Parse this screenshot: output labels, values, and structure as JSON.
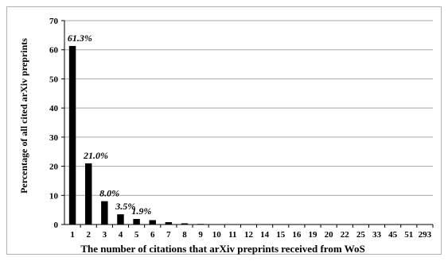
{
  "chart_data": {
    "type": "bar",
    "title": "",
    "xlabel": "The number of citations that arXiv preprints received from WoS",
    "ylabel": "Percentage of all cited arXiv preprints",
    "ylim": [
      0,
      70
    ],
    "yticks": [
      "0",
      "10",
      "20",
      "30",
      "40",
      "50",
      "60",
      "70"
    ],
    "grid": true,
    "legend": "none",
    "categories": [
      "1",
      "2",
      "3",
      "4",
      "5",
      "6",
      "7",
      "8",
      "9",
      "10",
      "11",
      "12",
      "14",
      "15",
      "16",
      "19",
      "20",
      "22",
      "25",
      "33",
      "45",
      "51",
      "293"
    ],
    "values": [
      61.3,
      21.0,
      8.0,
      3.5,
      1.9,
      1.5,
      0.8,
      0.4,
      0.2,
      0.1,
      0.05,
      0.05,
      0.05,
      0.05,
      0.05,
      0.05,
      0.05,
      0.05,
      0.05,
      0.05,
      0.05,
      0.05,
      0.05
    ],
    "data_labels": [
      "61.3%",
      "21.0%",
      "8.0%",
      "3.5%",
      "1.9%",
      "",
      "",
      "",
      "",
      "",
      "",
      "",
      "",
      "",
      "",
      "",
      "",
      "",
      "",
      "",
      "",
      "",
      ""
    ],
    "colors": {
      "bar": "#000000",
      "grid": "#a6a6a6",
      "axis": "#000000"
    }
  }
}
